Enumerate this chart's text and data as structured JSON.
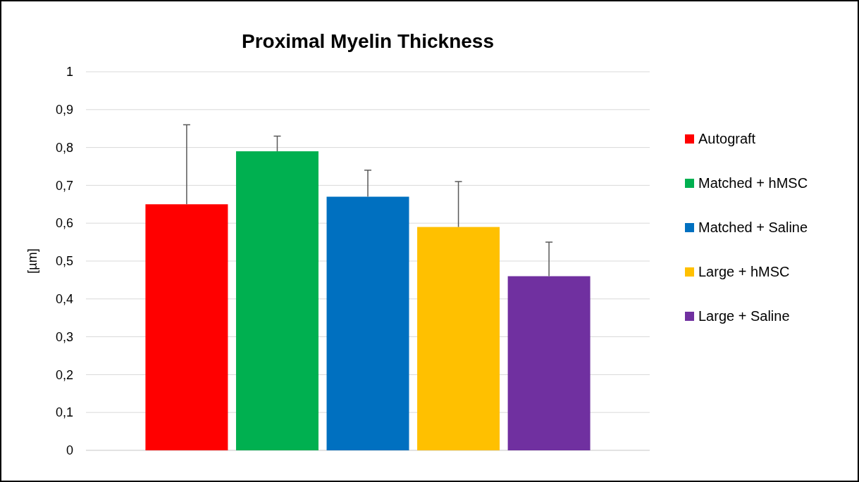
{
  "chart_data": {
    "type": "bar",
    "title": "Proximal Myelin Thickness",
    "ylabel": "[µm]",
    "categories": [
      null
    ],
    "series": [
      {
        "name": "Autograft",
        "color": "#ff0000",
        "values": [
          0.65
        ],
        "errors": [
          0.21
        ]
      },
      {
        "name": "Matched + hMSC",
        "color": "#00b050",
        "values": [
          0.79
        ],
        "errors": [
          0.04
        ]
      },
      {
        "name": "Matched + Saline",
        "color": "#0070c0",
        "values": [
          0.67
        ],
        "errors": [
          0.07
        ]
      },
      {
        "name": "Large + hMSC",
        "color": "#ffc000",
        "values": [
          0.59
        ],
        "errors": [
          0.12
        ]
      },
      {
        "name": "Large + Saline",
        "color": "#7030a0",
        "values": [
          0.46
        ],
        "errors": [
          0.09
        ]
      }
    ],
    "ylim": [
      0,
      1
    ],
    "yticks": [
      0,
      {
        "value": 0.1,
        "label": "0,1"
      },
      {
        "value": 0.2,
        "label": "0,2"
      },
      {
        "value": 0.3,
        "label": "0,3"
      },
      {
        "value": 0.4,
        "label": "0,4"
      },
      {
        "value": 0.5,
        "label": "0,5"
      },
      {
        "value": 0.6,
        "label": "0,6"
      },
      {
        "value": 0.7,
        "label": "0,7"
      },
      {
        "value": 0.8,
        "label": "0,8"
      },
      {
        "value": 0.9,
        "label": "0,9"
      },
      1
    ],
    "grid": "y",
    "legend": "right"
  }
}
